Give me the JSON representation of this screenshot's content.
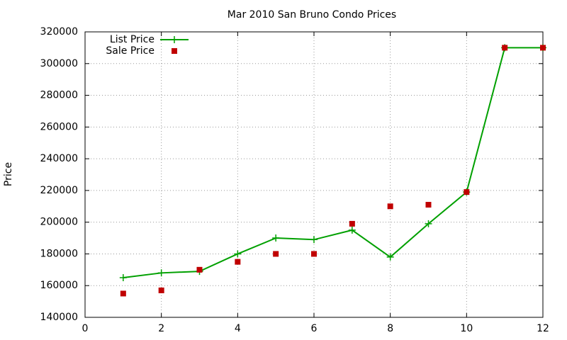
{
  "chart_data": {
    "type": "line",
    "title": "Mar 2010 San Bruno Condo Prices",
    "y_label": "Price",
    "x": [
      1,
      2,
      3,
      4,
      5,
      6,
      7,
      8,
      9,
      10,
      11,
      12
    ],
    "series": [
      {
        "name": "List Price",
        "color": "#00a000",
        "style": "linespoints",
        "marker": "plus",
        "values": [
          165000,
          168000,
          169000,
          180000,
          190000,
          189000,
          195000,
          178000,
          199000,
          219000,
          310000,
          310000
        ]
      },
      {
        "name": "Sale Price",
        "color": "#c00000",
        "style": "points",
        "marker": "square",
        "values": [
          155000,
          157000,
          170000,
          175000,
          180000,
          180000,
          199000,
          210000,
          211000,
          219000,
          310000,
          310000
        ]
      }
    ],
    "xlim": [
      0,
      12
    ],
    "xticks": [
      0,
      2,
      4,
      6,
      8,
      10,
      12
    ],
    "ylim": [
      140000,
      320000
    ],
    "yticks": [
      140000,
      160000,
      180000,
      200000,
      220000,
      240000,
      260000,
      280000,
      300000,
      320000
    ],
    "grid": true,
    "legend": "top-left"
  }
}
